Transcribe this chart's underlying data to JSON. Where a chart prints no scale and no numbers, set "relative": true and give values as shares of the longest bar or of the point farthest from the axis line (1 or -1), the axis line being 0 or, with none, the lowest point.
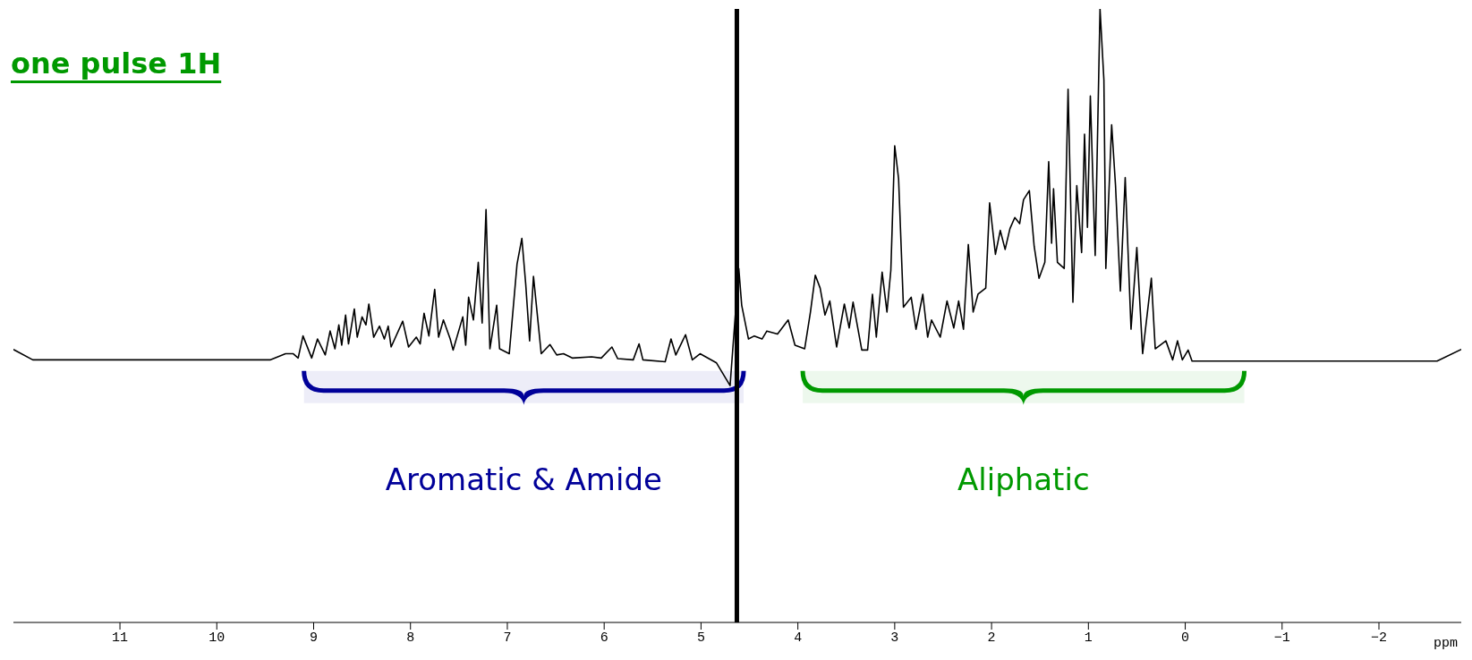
{
  "chart_data": {
    "type": "line",
    "title": "one pulse 1H",
    "xlabel": "ppm",
    "relative": true,
    "color": "#000000",
    "x": [
      12.1,
      11.9,
      9.6,
      9.45,
      9.29,
      9.21,
      9.16,
      9.11,
      9.02,
      8.96,
      8.88,
      8.83,
      8.78,
      8.74,
      8.71,
      8.67,
      8.64,
      8.58,
      8.55,
      8.5,
      8.46,
      8.43,
      8.38,
      8.32,
      8.27,
      8.23,
      8.2,
      8.08,
      8.02,
      7.94,
      7.9,
      7.86,
      7.81,
      7.75,
      7.71,
      7.66,
      7.59,
      7.56,
      7.46,
      7.43,
      7.4,
      7.35,
      7.3,
      7.26,
      7.22,
      7.18,
      7.11,
      7.08,
      6.98,
      6.9,
      6.85,
      6.81,
      6.77,
      6.73,
      6.65,
      6.56,
      6.49,
      6.42,
      6.33,
      6.13,
      6.03,
      5.92,
      5.86,
      5.7,
      5.64,
      5.6,
      5.37,
      5.31,
      5.26,
      5.16,
      5.09,
      5.01,
      4.84,
      4.7,
      4.61,
      4.58,
      4.51,
      4.45,
      4.37,
      4.32,
      4.21,
      4.1,
      4.03,
      3.93,
      3.87,
      3.82,
      3.77,
      3.72,
      3.67,
      3.6,
      3.52,
      3.47,
      3.43,
      3.34,
      3.28,
      3.23,
      3.19,
      3.13,
      3.08,
      3.04,
      3.0,
      2.96,
      2.91,
      2.83,
      2.78,
      2.71,
      2.66,
      2.62,
      2.53,
      2.46,
      2.39,
      2.34,
      2.29,
      2.24,
      2.19,
      2.14,
      2.06,
      2.02,
      1.96,
      1.91,
      1.86,
      1.81,
      1.76,
      1.71,
      1.67,
      1.61,
      1.56,
      1.51,
      1.45,
      1.41,
      1.38,
      1.36,
      1.32,
      1.25,
      1.21,
      1.16,
      1.12,
      1.07,
      1.04,
      1.01,
      0.98,
      0.93,
      0.88,
      0.84,
      0.82,
      0.76,
      0.72,
      0.67,
      0.62,
      0.56,
      0.5,
      0.44,
      0.35,
      0.31,
      0.2,
      0.13,
      0.08,
      0.03,
      -0.03,
      -0.07,
      -0.69,
      -2.6,
      -2.85
    ],
    "values": [
      0.445,
      0.428,
      0.428,
      0.428,
      0.438,
      0.438,
      0.431,
      0.467,
      0.431,
      0.462,
      0.436,
      0.475,
      0.446,
      0.485,
      0.452,
      0.501,
      0.454,
      0.511,
      0.465,
      0.498,
      0.485,
      0.519,
      0.465,
      0.483,
      0.462,
      0.483,
      0.449,
      0.491,
      0.449,
      0.465,
      0.454,
      0.504,
      0.467,
      0.543,
      0.465,
      0.493,
      0.462,
      0.444,
      0.498,
      0.452,
      0.53,
      0.493,
      0.587,
      0.488,
      0.673,
      0.446,
      0.517,
      0.446,
      0.438,
      0.584,
      0.626,
      0.551,
      0.459,
      0.564,
      0.438,
      0.453,
      0.436,
      0.438,
      0.431,
      0.433,
      0.431,
      0.449,
      0.43,
      0.428,
      0.454,
      0.428,
      0.425,
      0.462,
      0.436,
      0.469,
      0.428,
      0.438,
      0.423,
      0.386,
      0.577,
      0.517,
      0.462,
      0.467,
      0.462,
      0.475,
      0.47,
      0.493,
      0.452,
      0.446,
      0.506,
      0.566,
      0.545,
      0.501,
      0.524,
      0.449,
      0.519,
      0.48,
      0.522,
      0.444,
      0.444,
      0.535,
      0.465,
      0.571,
      0.506,
      0.574,
      0.777,
      0.723,
      0.514,
      0.53,
      0.478,
      0.535,
      0.465,
      0.493,
      0.465,
      0.524,
      0.48,
      0.524,
      0.478,
      0.616,
      0.506,
      0.535,
      0.545,
      0.684,
      0.6,
      0.639,
      0.608,
      0.642,
      0.66,
      0.65,
      0.689,
      0.704,
      0.613,
      0.561,
      0.587,
      0.751,
      0.618,
      0.707,
      0.587,
      0.577,
      0.869,
      0.522,
      0.712,
      0.603,
      0.796,
      0.644,
      0.858,
      0.598,
      1.0,
      0.884,
      0.577,
      0.811,
      0.712,
      0.54,
      0.725,
      0.478,
      0.611,
      0.438,
      0.561,
      0.446,
      0.459,
      0.428,
      0.459,
      0.428,
      0.444,
      0.426,
      0.426,
      0.426,
      0.445
    ],
    "xlim": [
      12.1,
      -2.85
    ],
    "xticks": [
      11,
      10,
      9,
      8,
      7,
      6,
      5,
      4,
      3,
      2,
      1,
      0,
      -1,
      -2
    ],
    "ref_lines": [
      {
        "axis": "x",
        "value": 4.63,
        "color": "#000000"
      }
    ],
    "bands": [
      {
        "axis": "x",
        "from": 9.1,
        "to": 4.56,
        "label": "Aromatic & Amide",
        "color": "#000099"
      },
      {
        "axis": "x",
        "from": 3.95,
        "to": -0.61,
        "label": "Aliphatic",
        "color": "#009900"
      }
    ]
  }
}
